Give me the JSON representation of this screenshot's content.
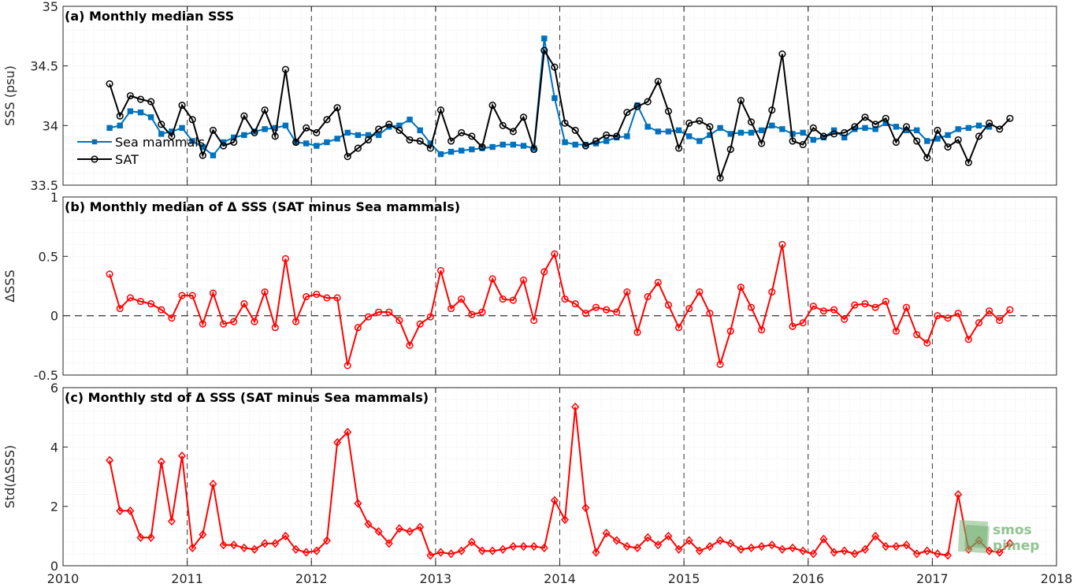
{
  "chart_data": [
    {
      "type": "line",
      "title": "(a) Monthly median SSS",
      "ylabel": "SSS (psu)",
      "xlim": [
        2010,
        2018
      ],
      "ylim": [
        33.5,
        35
      ],
      "yticks": [
        "33.5",
        "34",
        "34.5",
        "35"
      ],
      "grid": true,
      "legend": "top-left",
      "series": [
        {
          "name": "Sea mammals",
          "color": "#0072bd",
          "marker": "square",
          "x_start": "2010-05",
          "y": [
            33.98,
            34.0,
            34.12,
            34.11,
            34.07,
            33.93,
            33.95,
            33.98,
            33.87,
            33.82,
            33.75,
            33.86,
            33.9,
            33.92,
            33.95,
            33.97,
            33.98,
            34.0,
            33.86,
            33.85,
            33.83,
            33.86,
            33.89,
            33.94,
            33.92,
            33.92,
            33.92,
            33.99,
            34.0,
            34.05,
            33.96,
            33.85,
            33.76,
            33.78,
            33.79,
            33.8,
            33.81,
            33.82,
            33.84,
            33.84,
            33.83,
            33.81,
            34.73,
            34.23,
            33.86,
            33.84,
            33.84,
            33.85,
            33.87,
            33.9,
            33.91,
            34.17,
            33.99,
            33.95,
            33.95,
            33.96,
            33.91,
            33.87,
            33.92,
            33.98,
            33.93,
            33.94,
            33.94,
            33.96,
            34.0,
            33.97,
            33.93,
            33.94,
            33.88,
            33.9,
            33.96,
            33.9,
            33.97,
            33.98,
            33.97,
            34.02,
            33.99,
            33.96,
            33.96,
            33.87,
            33.89,
            33.92,
            33.97,
            33.98,
            34.0,
            33.99
          ]
        },
        {
          "name": "SAT",
          "color": "#000000",
          "marker": "circle",
          "x_start": "2010-05",
          "y": [
            34.35,
            34.08,
            34.25,
            34.22,
            34.2,
            34.01,
            33.91,
            34.17,
            34.05,
            33.75,
            33.96,
            33.83,
            33.86,
            34.08,
            33.94,
            34.13,
            33.91,
            34.47,
            33.86,
            33.98,
            33.94,
            34.05,
            34.15,
            33.74,
            33.81,
            33.88,
            33.97,
            34.01,
            33.96,
            33.88,
            33.87,
            33.81,
            34.13,
            33.87,
            33.94,
            33.91,
            33.82,
            34.17,
            34.0,
            33.95,
            34.07,
            33.8,
            34.63,
            34.49,
            34.02,
            33.96,
            33.83,
            33.87,
            33.92,
            33.91,
            34.11,
            34.16,
            34.2,
            34.37,
            34.12,
            33.81,
            34.02,
            34.04,
            33.99,
            33.56,
            33.8,
            34.21,
            34.03,
            33.85,
            34.13,
            34.6,
            33.87,
            33.84,
            33.98,
            33.91,
            33.93,
            33.94,
            33.99,
            34.07,
            34.01,
            34.06,
            33.86,
            33.99,
            33.87,
            33.73,
            33.96,
            33.82,
            33.88,
            33.69,
            33.91,
            34.02,
            33.97,
            34.06
          ]
        }
      ]
    },
    {
      "type": "line",
      "title": "(b) Monthly median of Δ SSS (SAT minus Sea mammals)",
      "ylabel": "ΔSSS",
      "xlim": [
        2010,
        2018
      ],
      "ylim": [
        -0.5,
        1
      ],
      "yticks": [
        "-0.5",
        "0",
        "0.5",
        "1"
      ],
      "grid": true,
      "reference_line": 0,
      "series": [
        {
          "color": "#ff0000",
          "marker": "circle",
          "x_start": "2010-05",
          "y": [
            0.35,
            0.06,
            0.15,
            0.12,
            0.1,
            0.05,
            -0.02,
            0.17,
            0.17,
            -0.07,
            0.19,
            -0.07,
            -0.05,
            0.1,
            -0.05,
            0.2,
            -0.1,
            0.48,
            -0.05,
            0.16,
            0.18,
            0.15,
            0.15,
            -0.42,
            -0.1,
            -0.01,
            0.03,
            0.03,
            -0.04,
            -0.25,
            -0.07,
            -0.01,
            0.38,
            0.06,
            0.14,
            0.01,
            0.03,
            0.31,
            0.14,
            0.13,
            0.3,
            -0.04,
            0.37,
            0.52,
            0.14,
            0.1,
            0.02,
            0.07,
            0.05,
            0.03,
            0.2,
            -0.14,
            0.16,
            0.28,
            0.09,
            -0.1,
            0.06,
            0.2,
            0.02,
            -0.41,
            -0.13,
            0.24,
            0.07,
            -0.12,
            0.2,
            0.6,
            -0.09,
            -0.06,
            0.08,
            0.04,
            0.05,
            -0.03,
            0.09,
            0.1,
            0.07,
            0.12,
            -0.13,
            0.07,
            -0.16,
            -0.23,
            0.0,
            -0.02,
            0.02,
            -0.2,
            -0.06,
            0.04,
            -0.04,
            0.05
          ]
        }
      ]
    },
    {
      "type": "line",
      "title": "(c) Monthly std of Δ SSS (SAT minus Sea mammals)",
      "ylabel": "Std(ΔSSS)",
      "xlim": [
        2010,
        2018
      ],
      "ylim": [
        0,
        6
      ],
      "yticks": [
        "0",
        "2",
        "4",
        "6"
      ],
      "xticks": [
        "2010",
        "2011",
        "2012",
        "2013",
        "2014",
        "2015",
        "2016",
        "2017",
        "2018"
      ],
      "grid": true,
      "series": [
        {
          "color": "#ff0000",
          "marker": "diamond",
          "x_start": "2010-05",
          "y": [
            3.55,
            1.85,
            1.85,
            0.95,
            0.95,
            3.5,
            1.5,
            3.7,
            0.6,
            1.05,
            2.75,
            0.7,
            0.7,
            0.6,
            0.55,
            0.75,
            0.75,
            1.0,
            0.55,
            0.45,
            0.5,
            0.85,
            4.15,
            4.5,
            2.1,
            1.4,
            1.15,
            0.75,
            1.25,
            1.15,
            1.3,
            0.35,
            0.45,
            0.4,
            0.5,
            0.8,
            0.5,
            0.5,
            0.55,
            0.65,
            0.65,
            0.65,
            0.6,
            2.2,
            1.55,
            5.35,
            1.95,
            0.45,
            1.1,
            0.85,
            0.65,
            0.6,
            0.95,
            0.7,
            1.0,
            0.55,
            0.85,
            0.5,
            0.65,
            0.85,
            0.75,
            0.55,
            0.6,
            0.65,
            0.7,
            0.55,
            0.6,
            0.5,
            0.4,
            0.9,
            0.45,
            0.5,
            0.4,
            0.55,
            1.0,
            0.65,
            0.65,
            0.7,
            0.4,
            0.5,
            0.4,
            0.35,
            2.4,
            0.55,
            0.85,
            0.5,
            0.45,
            0.75
          ]
        }
      ]
    }
  ],
  "logo": {
    "line1": "smos",
    "line2": "pimep",
    "color": "#7cb87c"
  }
}
